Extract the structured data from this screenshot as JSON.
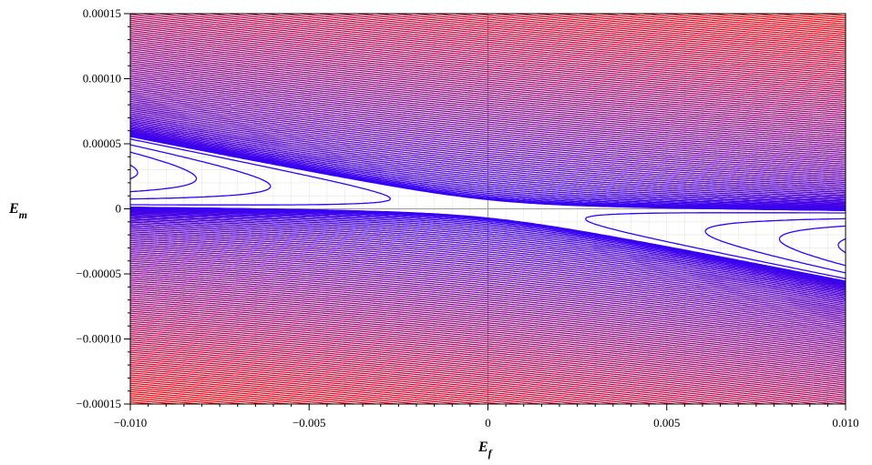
{
  "chart_data": {
    "type": "contour",
    "title": "",
    "xlabel": {
      "main": "E",
      "sub": "f"
    },
    "ylabel": {
      "main": "E",
      "sub": "m"
    },
    "xlim": [
      -0.01,
      0.01
    ],
    "ylim": [
      -0.00015,
      0.00015
    ],
    "x_ticks": [
      {
        "value": -0.01,
        "label": "−0.010"
      },
      {
        "value": -0.005,
        "label": "−0.005"
      },
      {
        "value": 0,
        "label": "0"
      },
      {
        "value": 0.005,
        "label": "0.005"
      },
      {
        "value": 0.01,
        "label": "0.010"
      }
    ],
    "y_ticks": [
      {
        "value": 0.00015,
        "label": "0.00015"
      },
      {
        "value": 0.0001,
        "label": "0.00010"
      },
      {
        "value": 5e-05,
        "label": "0.00005"
      },
      {
        "value": 0,
        "label": "0"
      },
      {
        "value": -5e-05,
        "label": "−0.00005"
      },
      {
        "value": -0.0001,
        "label": "−0.00010"
      },
      {
        "value": -0.00015,
        "label": "−0.00015"
      }
    ],
    "grid": true,
    "legend": "none",
    "color_low": "#2d00ff",
    "color_high": "#ff0000",
    "zero_line_color": "#9a9a9a",
    "grid_color": "#e6e6e6"
  }
}
